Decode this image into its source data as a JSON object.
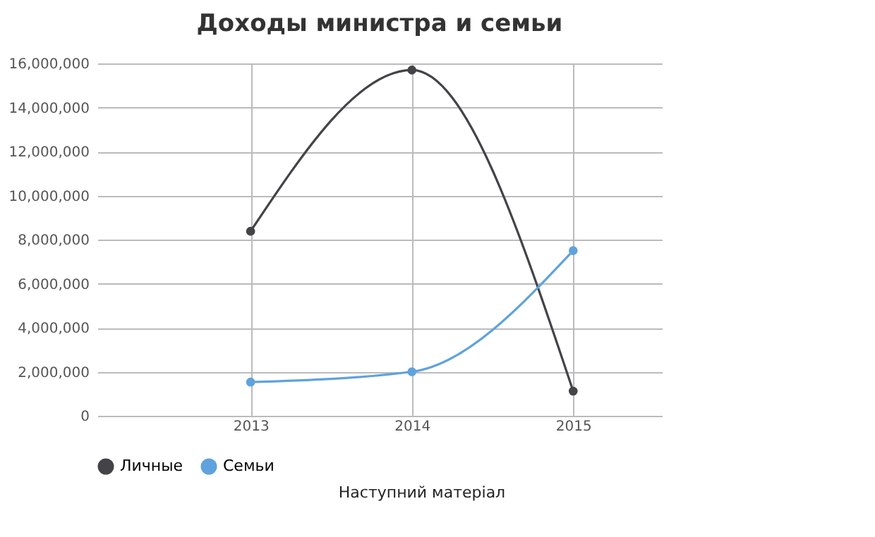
{
  "chart_data": {
    "type": "line",
    "title": "Доходы министра и семьи",
    "categories": [
      "2013",
      "2014",
      "2015"
    ],
    "series": [
      {
        "name": "Личные",
        "color": "#434348",
        "values": [
          8380000,
          15700000,
          1120000
        ]
      },
      {
        "name": "Семьи",
        "color": "#5fa2dd",
        "values": [
          1530000,
          2000000,
          7500000
        ]
      }
    ],
    "ylim": [
      0,
      16000000
    ],
    "yticks": [
      0,
      {
        "value": 2000000,
        "label": "2,000,000"
      },
      {
        "value": 4000000,
        "label": "4,000,000"
      },
      {
        "value": 6000000,
        "label": "6,000,000"
      },
      {
        "value": 8000000,
        "label": "8,000,000"
      },
      {
        "value": 10000000,
        "label": "10,000,000"
      },
      {
        "value": 12000000,
        "label": "12,000,000"
      },
      {
        "value": 14000000,
        "label": "14,000,000"
      },
      {
        "value": 16000000,
        "label": "16,000,000"
      }
    ],
    "grid": true,
    "legend": "bottom",
    "marker": "circle",
    "line_style": "solid",
    "annotations": [
      "Наступний матеріал"
    ]
  }
}
